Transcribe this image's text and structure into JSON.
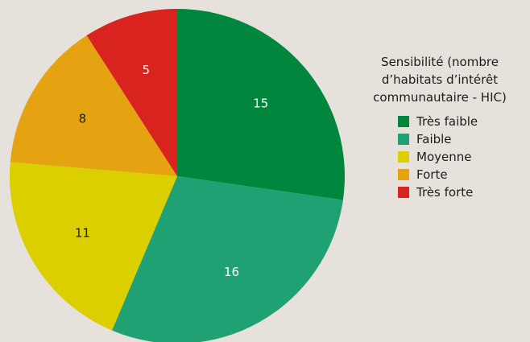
{
  "chart_data": {
    "type": "pie",
    "title": "",
    "categories": [
      "Très faible",
      "Faible",
      "Moyenne",
      "Forte",
      "Très forte"
    ],
    "values": [
      15,
      16,
      11,
      8,
      5
    ],
    "colors": [
      "#00863d",
      "#20a174",
      "#dccf00",
      "#e5a312",
      "#d8231f"
    ],
    "label_colors": [
      "#ffffff",
      "#ffffff",
      "#1c1c1c",
      "#1c1c1c",
      "#ffffff"
    ],
    "start": "12 o'clock",
    "direction": "clockwise",
    "legend": {
      "title_lines": [
        "Sensibilité (nombre",
        "d’habitats d’intérêt",
        "communautaire - HIC)"
      ],
      "position": "right",
      "items": [
        "Très faible",
        "Faible",
        "Moyenne",
        "Forte",
        "Très forte"
      ]
    },
    "background": "#e6e1db"
  }
}
